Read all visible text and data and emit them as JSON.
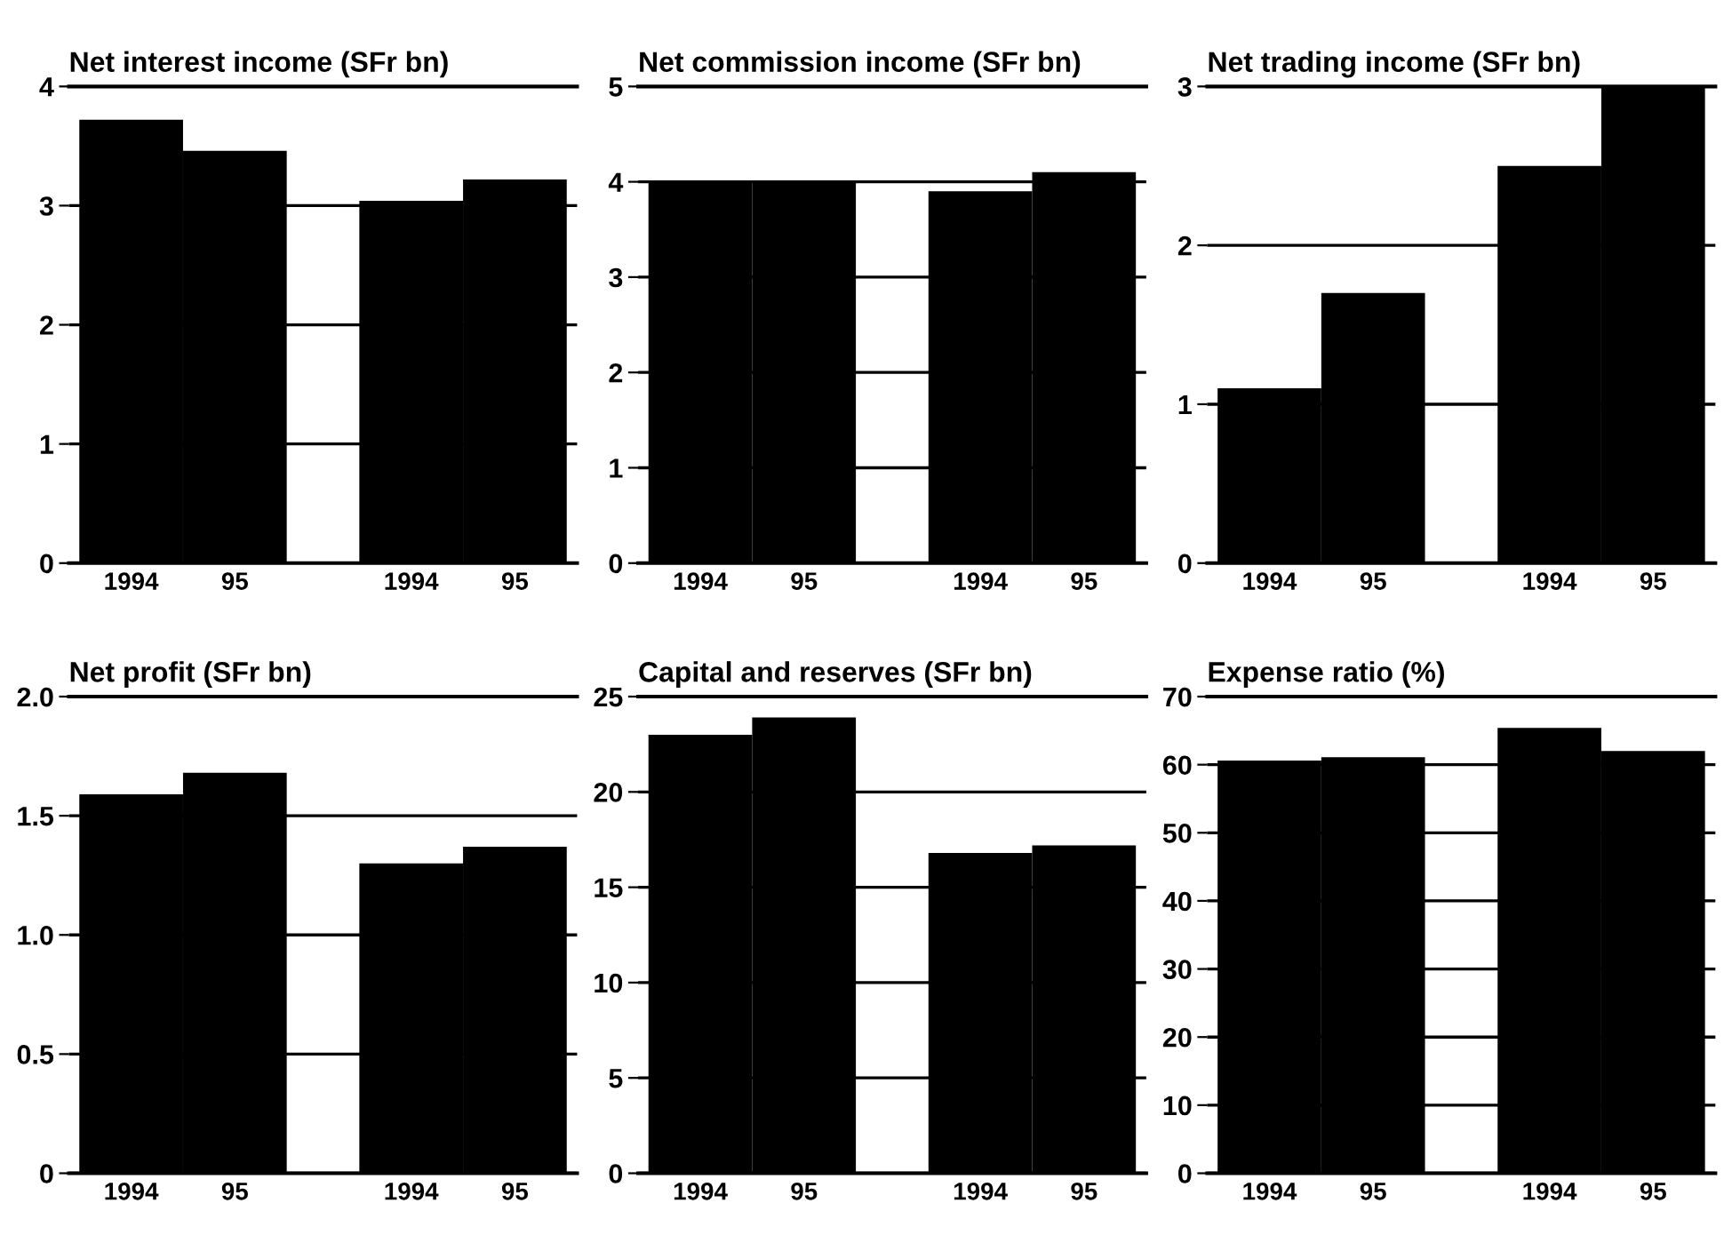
{
  "chart_data": [
    {
      "type": "bar",
      "title": "Net interest income (SFr bn)",
      "categories": [
        "1994",
        "95",
        "1994",
        "95"
      ],
      "values": [
        3.72,
        3.46,
        3.04,
        3.22
      ],
      "color": "#000000",
      "ylim": [
        0,
        4
      ],
      "yticks": [
        0,
        1,
        2,
        3,
        4
      ],
      "grid": "y"
    },
    {
      "type": "bar",
      "title": "Net commission income (SFr bn)",
      "categories": [
        "1994",
        "95",
        "1994",
        "95"
      ],
      "values": [
        4.0,
        4.0,
        3.9,
        4.1
      ],
      "color": "#000000",
      "ylim": [
        0,
        5
      ],
      "yticks": [
        0,
        1,
        2,
        3,
        4,
        5
      ],
      "grid": "y"
    },
    {
      "type": "bar",
      "title": "Net trading income (SFr bn)",
      "categories": [
        "1994",
        "95",
        "1994",
        "95"
      ],
      "values": [
        1.1,
        1.7,
        2.5,
        3.0
      ],
      "color": "#000000",
      "ylim": [
        0,
        3
      ],
      "yticks": [
        0,
        1,
        2,
        3
      ],
      "grid": "y"
    },
    {
      "type": "bar",
      "title": "Net profit (SFr bn)",
      "categories": [
        "1994",
        "95",
        "1994",
        "95"
      ],
      "values": [
        1.59,
        1.68,
        1.3,
        1.37
      ],
      "color": "#000000",
      "ylim": [
        0,
        2.0
      ],
      "yticks": [
        0,
        {
          "value": 0.5,
          "label": "0.5"
        },
        {
          "value": 1.0,
          "label": "1.0"
        },
        {
          "value": 1.5,
          "label": "1.5"
        },
        {
          "value": 2.0,
          "label": "2.0"
        }
      ],
      "grid": "y"
    },
    {
      "type": "bar",
      "title": "Capital and reserves (SFr bn)",
      "categories": [
        "1994",
        "95",
        "1994",
        "95"
      ],
      "values": [
        23.0,
        23.9,
        16.8,
        17.2
      ],
      "color": "#000000",
      "ylim": [
        0,
        25
      ],
      "yticks": [
        0,
        5,
        10,
        15,
        20,
        25
      ],
      "grid": "y"
    },
    {
      "type": "bar",
      "title": "Expense ratio (%)",
      "categories": [
        "1994",
        "95",
        "1994",
        "95"
      ],
      "values": [
        60.6,
        61.1,
        65.4,
        62.0
      ],
      "color": "#000000",
      "ylim": [
        0,
        70
      ],
      "yticks": [
        0,
        10,
        20,
        30,
        40,
        50,
        60,
        70
      ],
      "grid": "y"
    }
  ]
}
